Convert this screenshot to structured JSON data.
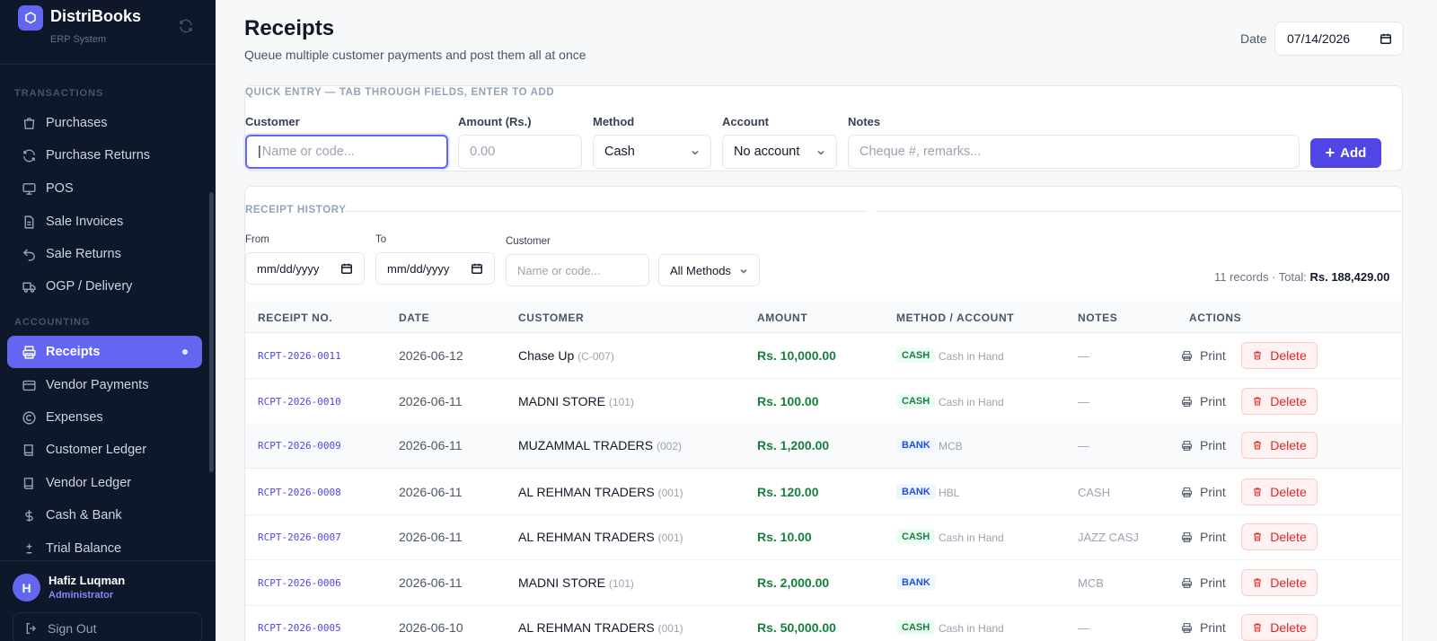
{
  "app": {
    "name": "DistriBooks",
    "subtitle": "ERP System"
  },
  "sidebar": {
    "sections": {
      "transactions": "TRANSACTIONS",
      "accounting": "ACCOUNTING"
    },
    "items": [
      {
        "label": "Purchases",
        "icon": "shopping-bag-icon"
      },
      {
        "label": "Purchase Returns",
        "icon": "refresh-icon"
      },
      {
        "label": "POS",
        "icon": "monitor-icon"
      },
      {
        "label": "Sale Invoices",
        "icon": "file-icon"
      },
      {
        "label": "Sale Returns",
        "icon": "undo-icon"
      },
      {
        "label": "OGP / Delivery",
        "icon": "truck-icon"
      },
      {
        "label": "Receipts",
        "icon": "printer-icon",
        "active": true
      },
      {
        "label": "Vendor Payments",
        "icon": "credit-card-icon"
      },
      {
        "label": "Expenses",
        "icon": "copyright-icon"
      },
      {
        "label": "Customer Ledger",
        "icon": "book-icon"
      },
      {
        "label": "Vendor Ledger",
        "icon": "book-icon"
      },
      {
        "label": "Cash & Bank",
        "icon": "dollar-icon"
      },
      {
        "label": "Trial Balance",
        "icon": "plus-minus-icon"
      }
    ],
    "user": {
      "initial": "H",
      "name": "Hafiz Luqman",
      "role": "Administrator"
    },
    "signout": "Sign Out"
  },
  "header": {
    "title": "Receipts",
    "subtitle": "Queue multiple customer payments and post them all at once",
    "date_label": "Date",
    "date_value": "07/14/2026"
  },
  "quick_entry": {
    "title": "QUICK ENTRY — TAB THROUGH FIELDS, ENTER TO ADD",
    "customer_label": "Customer",
    "customer_placeholder": "Name or code...",
    "amount_label": "Amount (Rs.)",
    "amount_placeholder": "0.00",
    "method_label": "Method",
    "method_value": "Cash",
    "account_label": "Account",
    "account_value": "No account",
    "notes_label": "Notes",
    "notes_placeholder": "Cheque #, remarks...",
    "add_label": "Add"
  },
  "history": {
    "title": "RECEIPT HISTORY",
    "from_label": "From",
    "from_placeholder": "mm/dd/yyyy",
    "to_label": "To",
    "to_placeholder": "mm/dd/yyyy",
    "customer_label": "Customer",
    "customer_placeholder": "Name or code...",
    "method_filter": "All Methods",
    "records_text": "11 records · Total:",
    "total": "Rs. 188,429.00",
    "columns": [
      "RECEIPT NO.",
      "DATE",
      "CUSTOMER",
      "AMOUNT",
      "METHOD / ACCOUNT",
      "NOTES",
      "ACTIONS"
    ],
    "print_label": "Print",
    "delete_label": "Delete",
    "rows": [
      {
        "no": "RCPT-2026-0011",
        "date": "2026-06-12",
        "customer": "Chase Up",
        "code": "(C-007)",
        "amount": "Rs. 10,000.00",
        "method": "CASH",
        "account": "Cash in Hand",
        "notes": "—"
      },
      {
        "no": "RCPT-2026-0010",
        "date": "2026-06-11",
        "customer": "MADNI STORE",
        "code": "(101)",
        "amount": "Rs. 100.00",
        "method": "CASH",
        "account": "Cash in Hand",
        "notes": "—"
      },
      {
        "no": "RCPT-2026-0009",
        "date": "2026-06-11",
        "customer": "MUZAMMAL TRADERS",
        "code": "(002)",
        "amount": "Rs. 1,200.00",
        "method": "BANK",
        "account": "MCB",
        "notes": "—"
      },
      {
        "no": "RCPT-2026-0008",
        "date": "2026-06-11",
        "customer": "AL REHMAN TRADERS",
        "code": "(001)",
        "amount": "Rs. 120.00",
        "method": "BANK",
        "account": "HBL",
        "notes": "CASH"
      },
      {
        "no": "RCPT-2026-0007",
        "date": "2026-06-11",
        "customer": "AL REHMAN TRADERS",
        "code": "(001)",
        "amount": "Rs. 10.00",
        "method": "CASH",
        "account": "Cash in Hand",
        "notes": "JAZZ CASJ"
      },
      {
        "no": "RCPT-2026-0006",
        "date": "2026-06-11",
        "customer": "MADNI STORE",
        "code": "(101)",
        "amount": "Rs. 2,000.00",
        "method": "BANK",
        "account": "",
        "notes": "MCB"
      },
      {
        "no": "RCPT-2026-0005",
        "date": "2026-06-10",
        "customer": "AL REHMAN TRADERS",
        "code": "(001)",
        "amount": "Rs. 50,000.00",
        "method": "CASH",
        "account": "Cash in Hand",
        "notes": "—"
      }
    ]
  },
  "colors": {
    "accent": "#6366f1",
    "sidebar_bg": "#0f172a",
    "amount": "#15803d",
    "delete": "#dc2626"
  }
}
